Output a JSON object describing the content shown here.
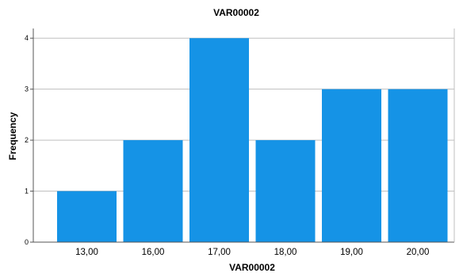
{
  "chart_data": {
    "type": "bar",
    "title": "VAR00002",
    "xlabel": "VAR00002",
    "ylabel": "Frequency",
    "categories": [
      "13,00",
      "16,00",
      "17,00",
      "18,00",
      "19,00",
      "20,00"
    ],
    "values": [
      1,
      2,
      4,
      2,
      3,
      3
    ],
    "y_ticks": [
      "0",
      "1",
      "2",
      "3",
      "4"
    ],
    "ylim": [
      0,
      4.5
    ],
    "grid": true,
    "bar_color": "#1593E6",
    "grid_color": "#BFBFBF",
    "axis_color": "#555555"
  }
}
